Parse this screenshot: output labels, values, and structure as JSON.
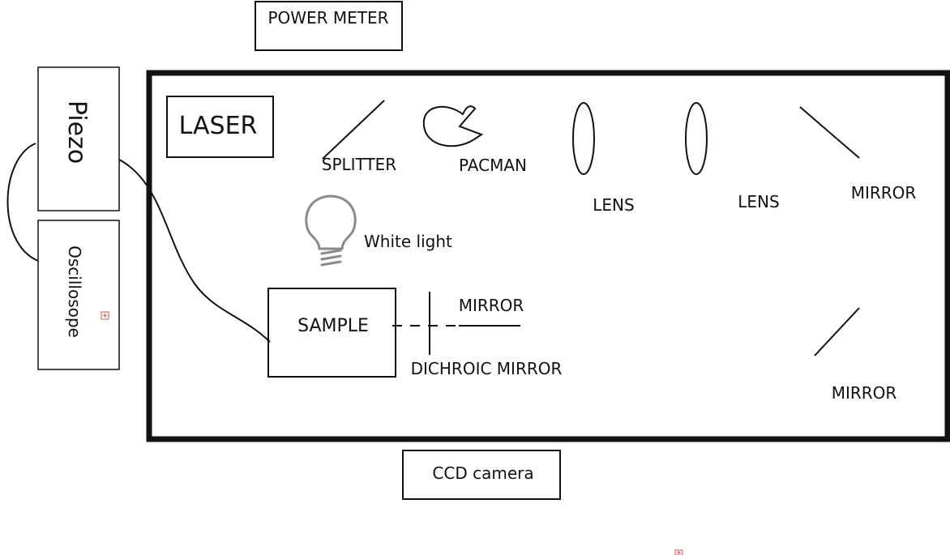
{
  "colors": {
    "ink": "#111111",
    "bulb": "#8a8a8a",
    "anchor_mark": "#d9534f"
  },
  "labels": {
    "power_meter": "POWER METER",
    "laser": "LASER",
    "splitter": "SPLITTER",
    "pacman": "PACMAN",
    "lens_1": "LENS",
    "lens_2": "LENS",
    "mirror_top_right": "MIRROR",
    "white_light": "White light",
    "sample": "SAMPLE",
    "mirror_center": "MIRROR",
    "dichroic_mirror": "DICHROIC MIRROR",
    "mirror_bottom_right": "MIRROR",
    "ccd_camera": "CCD camera",
    "piezo": "Piezo",
    "oscilloscope": "Oscillosope"
  }
}
